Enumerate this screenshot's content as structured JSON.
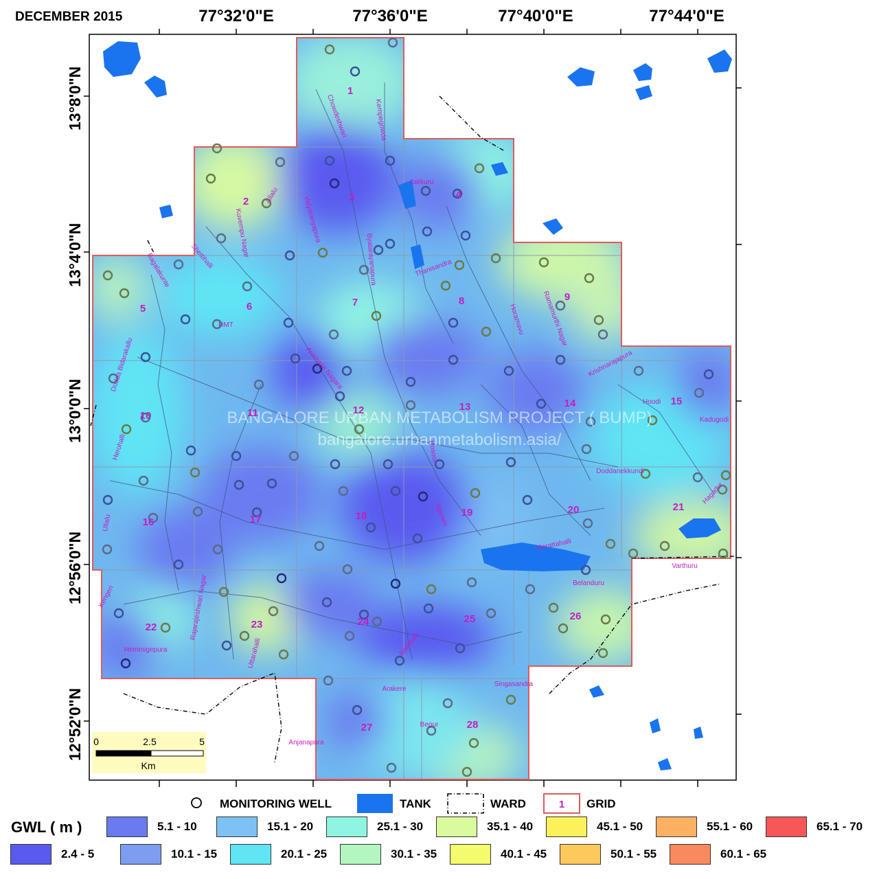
{
  "map": {
    "title": "DECEMBER 2015",
    "lon_labels": [
      "77°32'0\"E",
      "77°36'0\"E",
      "77°40'0\"E",
      "77°44'0\"E"
    ],
    "lat_labels": [
      "13°8'0\"N",
      "13°4'0\"N",
      "13°0'0\"N",
      "12°56'0\"N",
      "12°52'0\"N"
    ],
    "watermark": [
      "BANGALORE URBAN METABOLISM PROJECT ( BUMP)",
      "bangalore.urbanmetabolism.asia/"
    ],
    "grid_numbers": [
      "1",
      "2",
      "3",
      "4",
      "5",
      "6",
      "7",
      "8",
      "9",
      "10",
      "11",
      "12",
      "13",
      "14",
      "15",
      "16",
      "17",
      "18",
      "19",
      "20",
      "21",
      "22",
      "23",
      "24",
      "25",
      "26",
      "27",
      "28"
    ],
    "place_names": [
      "Chowdeshwari",
      "Kempegowda",
      "Jakkuru",
      "Allalu",
      "Kuvempu Nagar",
      "Vidyaranyapura",
      "Byatarayanapura",
      "Shettihalli",
      "Bagalakunte",
      "HMT",
      "Thanisandra",
      "Horamavu",
      "Ramamurthi Nagar",
      "Aramane Nagara",
      "Krishnarajapura",
      "Dodda Bidarakallu",
      "Hoodi",
      "Kadugodi",
      "Herohalli",
      "Doddanekkundi",
      "Hosoor",
      "Hagadur",
      "Ullalu",
      "Agaram",
      "Marattahalli",
      "Varthuru",
      "Belanduru",
      "Kengeri",
      "Rajarajeshwari Nagar",
      "Hemmigepura",
      "Uttarahalli",
      "Bilekhalli",
      "Arakere",
      "Singasandra",
      "Begur",
      "Anjanapura"
    ],
    "scale_bar": {
      "ticks": [
        "0",
        "2.5",
        "5"
      ],
      "unit": "Km"
    }
  },
  "legend": {
    "symbols": {
      "well": "MONITORING WELL",
      "tank": "TANK",
      "ward": "WARD",
      "grid": "GRID",
      "grid_sample": "1"
    },
    "gwl_title": "GWL ( m )",
    "classes": [
      {
        "label": "2.4 - 5",
        "color": "#5a5af0"
      },
      {
        "label": "5.1 - 10",
        "color": "#6a7af0"
      },
      {
        "label": "10.1 - 15",
        "color": "#7c9df2"
      },
      {
        "label": "15.1 - 20",
        "color": "#7ec1f4"
      },
      {
        "label": "20.1 - 25",
        "color": "#5fe5f4"
      },
      {
        "label": "25.1 - 30",
        "color": "#8ff5e3"
      },
      {
        "label": "30.1 - 35",
        "color": "#b3f6c0"
      },
      {
        "label": "35.1 - 40",
        "color": "#d9fb9d"
      },
      {
        "label": "40.1 - 45",
        "color": "#f4fb6c"
      },
      {
        "label": "45.1 - 50",
        "color": "#fbf25a"
      },
      {
        "label": "50.1 - 55",
        "color": "#fcc95a"
      },
      {
        "label": "55.1 - 60",
        "color": "#fbb062"
      },
      {
        "label": "60.1 - 65",
        "color": "#f98a5e"
      },
      {
        "label": "65.1 - 70",
        "color": "#f85757"
      }
    ],
    "tank_color": "#1a74ee",
    "grid_color": "#e05a5a"
  }
}
